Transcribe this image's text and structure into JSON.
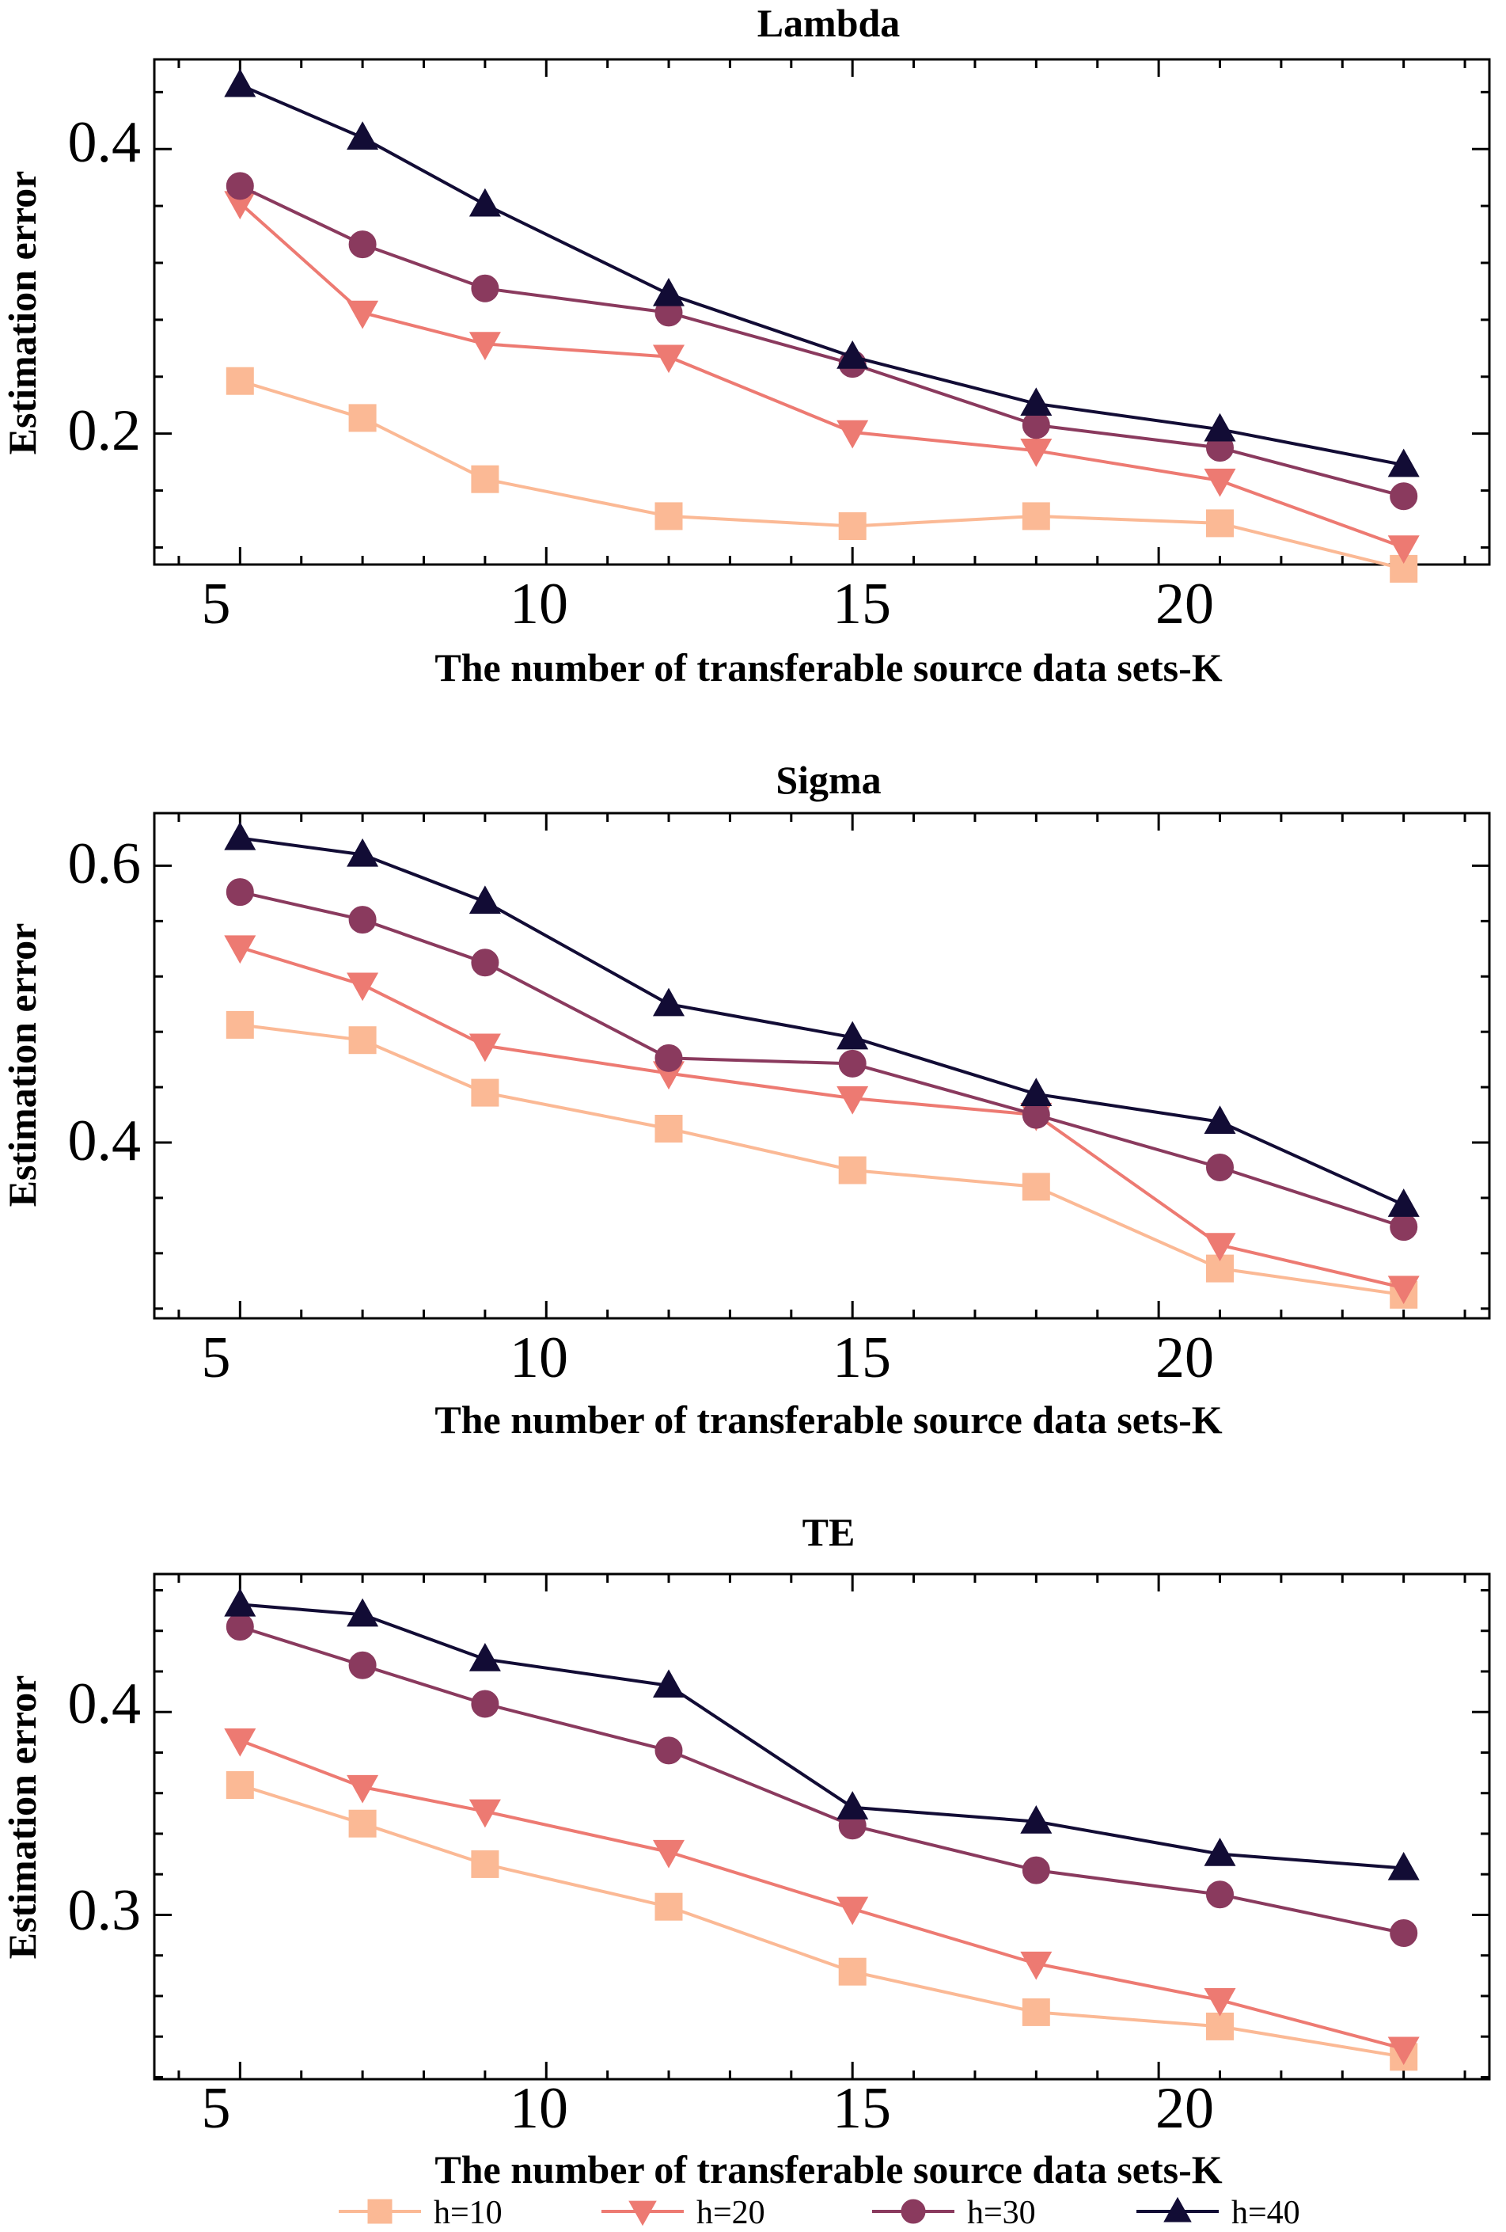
{
  "chart_data": [
    {
      "type": "line",
      "title": "Lambda",
      "xlabel": "The number of transferable source data sets-K",
      "ylabel": "Estimation error",
      "x": [
        5,
        7,
        9,
        12,
        15,
        18,
        21,
        24
      ],
      "xlim": [
        3.6,
        25.4
      ],
      "ylim": [
        0.108,
        0.463
      ],
      "xticks": [
        5,
        10,
        15,
        20
      ],
      "xtick_labels": [
        "5",
        "10",
        "15",
        "20"
      ],
      "yticks": [
        0.2,
        0.4
      ],
      "ytick_labels": [
        "0.2",
        "0.4"
      ],
      "series": [
        {
          "name": "h=10",
          "values": [
            0.237,
            0.211,
            0.168,
            0.142,
            0.135,
            0.142,
            0.137,
            0.105
          ]
        },
        {
          "name": "h=20",
          "values": [
            0.362,
            0.285,
            0.263,
            0.254,
            0.201,
            0.188,
            0.167,
            0.12
          ]
        },
        {
          "name": "h=30",
          "values": [
            0.374,
            0.333,
            0.302,
            0.285,
            0.249,
            0.206,
            0.19,
            0.156
          ]
        },
        {
          "name": "h=40",
          "values": [
            0.445,
            0.408,
            0.361,
            0.298,
            0.254,
            0.221,
            0.203,
            0.178
          ]
        }
      ]
    },
    {
      "type": "line",
      "title": "Sigma",
      "xlabel": "The number of transferable source data sets-K",
      "ylabel": "Estimation error",
      "x": [
        5,
        7,
        9,
        12,
        15,
        18,
        21,
        24
      ],
      "xlim": [
        3.6,
        25.4
      ],
      "ylim": [
        0.273,
        0.638
      ],
      "xticks": [
        5,
        10,
        15,
        20
      ],
      "xtick_labels": [
        "5",
        "10",
        "15",
        "20"
      ],
      "yticks": [
        0.4,
        0.6
      ],
      "ytick_labels": [
        "0.4",
        "0.6"
      ],
      "series": [
        {
          "name": "h=10",
          "values": [
            0.485,
            0.474,
            0.436,
            0.41,
            0.38,
            0.368,
            0.309,
            0.29
          ]
        },
        {
          "name": "h=20",
          "values": [
            0.541,
            0.514,
            0.47,
            0.45,
            0.432,
            0.42,
            0.326,
            0.295
          ]
        },
        {
          "name": "h=30",
          "values": [
            0.581,
            0.561,
            0.53,
            0.461,
            0.457,
            0.42,
            0.382,
            0.339
          ]
        },
        {
          "name": "h=40",
          "values": [
            0.62,
            0.608,
            0.574,
            0.5,
            0.476,
            0.435,
            0.415,
            0.355
          ]
        }
      ]
    },
    {
      "type": "line",
      "title": "TE",
      "xlabel": "The number of transferable source data sets-K",
      "ylabel": "Estimation error",
      "x": [
        5,
        7,
        9,
        12,
        15,
        18,
        21,
        24
      ],
      "xlim": [
        3.6,
        25.4
      ],
      "ylim": [
        0.219,
        0.468
      ],
      "xticks": [
        5,
        10,
        15,
        20
      ],
      "xtick_labels": [
        "5",
        "10",
        "15",
        "20"
      ],
      "yticks": [
        0.3,
        0.4
      ],
      "ytick_labels": [
        "0.3",
        "0.4"
      ],
      "series": [
        {
          "name": "h=10",
          "values": [
            0.364,
            0.345,
            0.325,
            0.304,
            0.272,
            0.252,
            0.245,
            0.23
          ]
        },
        {
          "name": "h=20",
          "values": [
            0.386,
            0.363,
            0.351,
            0.331,
            0.303,
            0.276,
            0.258,
            0.234
          ]
        },
        {
          "name": "h=30",
          "values": [
            0.442,
            0.423,
            0.404,
            0.381,
            0.344,
            0.322,
            0.31,
            0.291
          ]
        },
        {
          "name": "h=40",
          "values": [
            0.453,
            0.448,
            0.426,
            0.413,
            0.353,
            0.346,
            0.33,
            0.323
          ]
        }
      ]
    }
  ],
  "legend": {
    "position": "bottom-center",
    "items": [
      {
        "label": "h=10",
        "color": "#FBB995",
        "marker": "square"
      },
      {
        "label": "h=20",
        "color": "#ED7A72",
        "marker": "triangle-down"
      },
      {
        "label": "h=30",
        "color": "#8A3A5E",
        "marker": "circle"
      },
      {
        "label": "h=40",
        "color": "#120C35",
        "marker": "triangle-up"
      }
    ]
  }
}
